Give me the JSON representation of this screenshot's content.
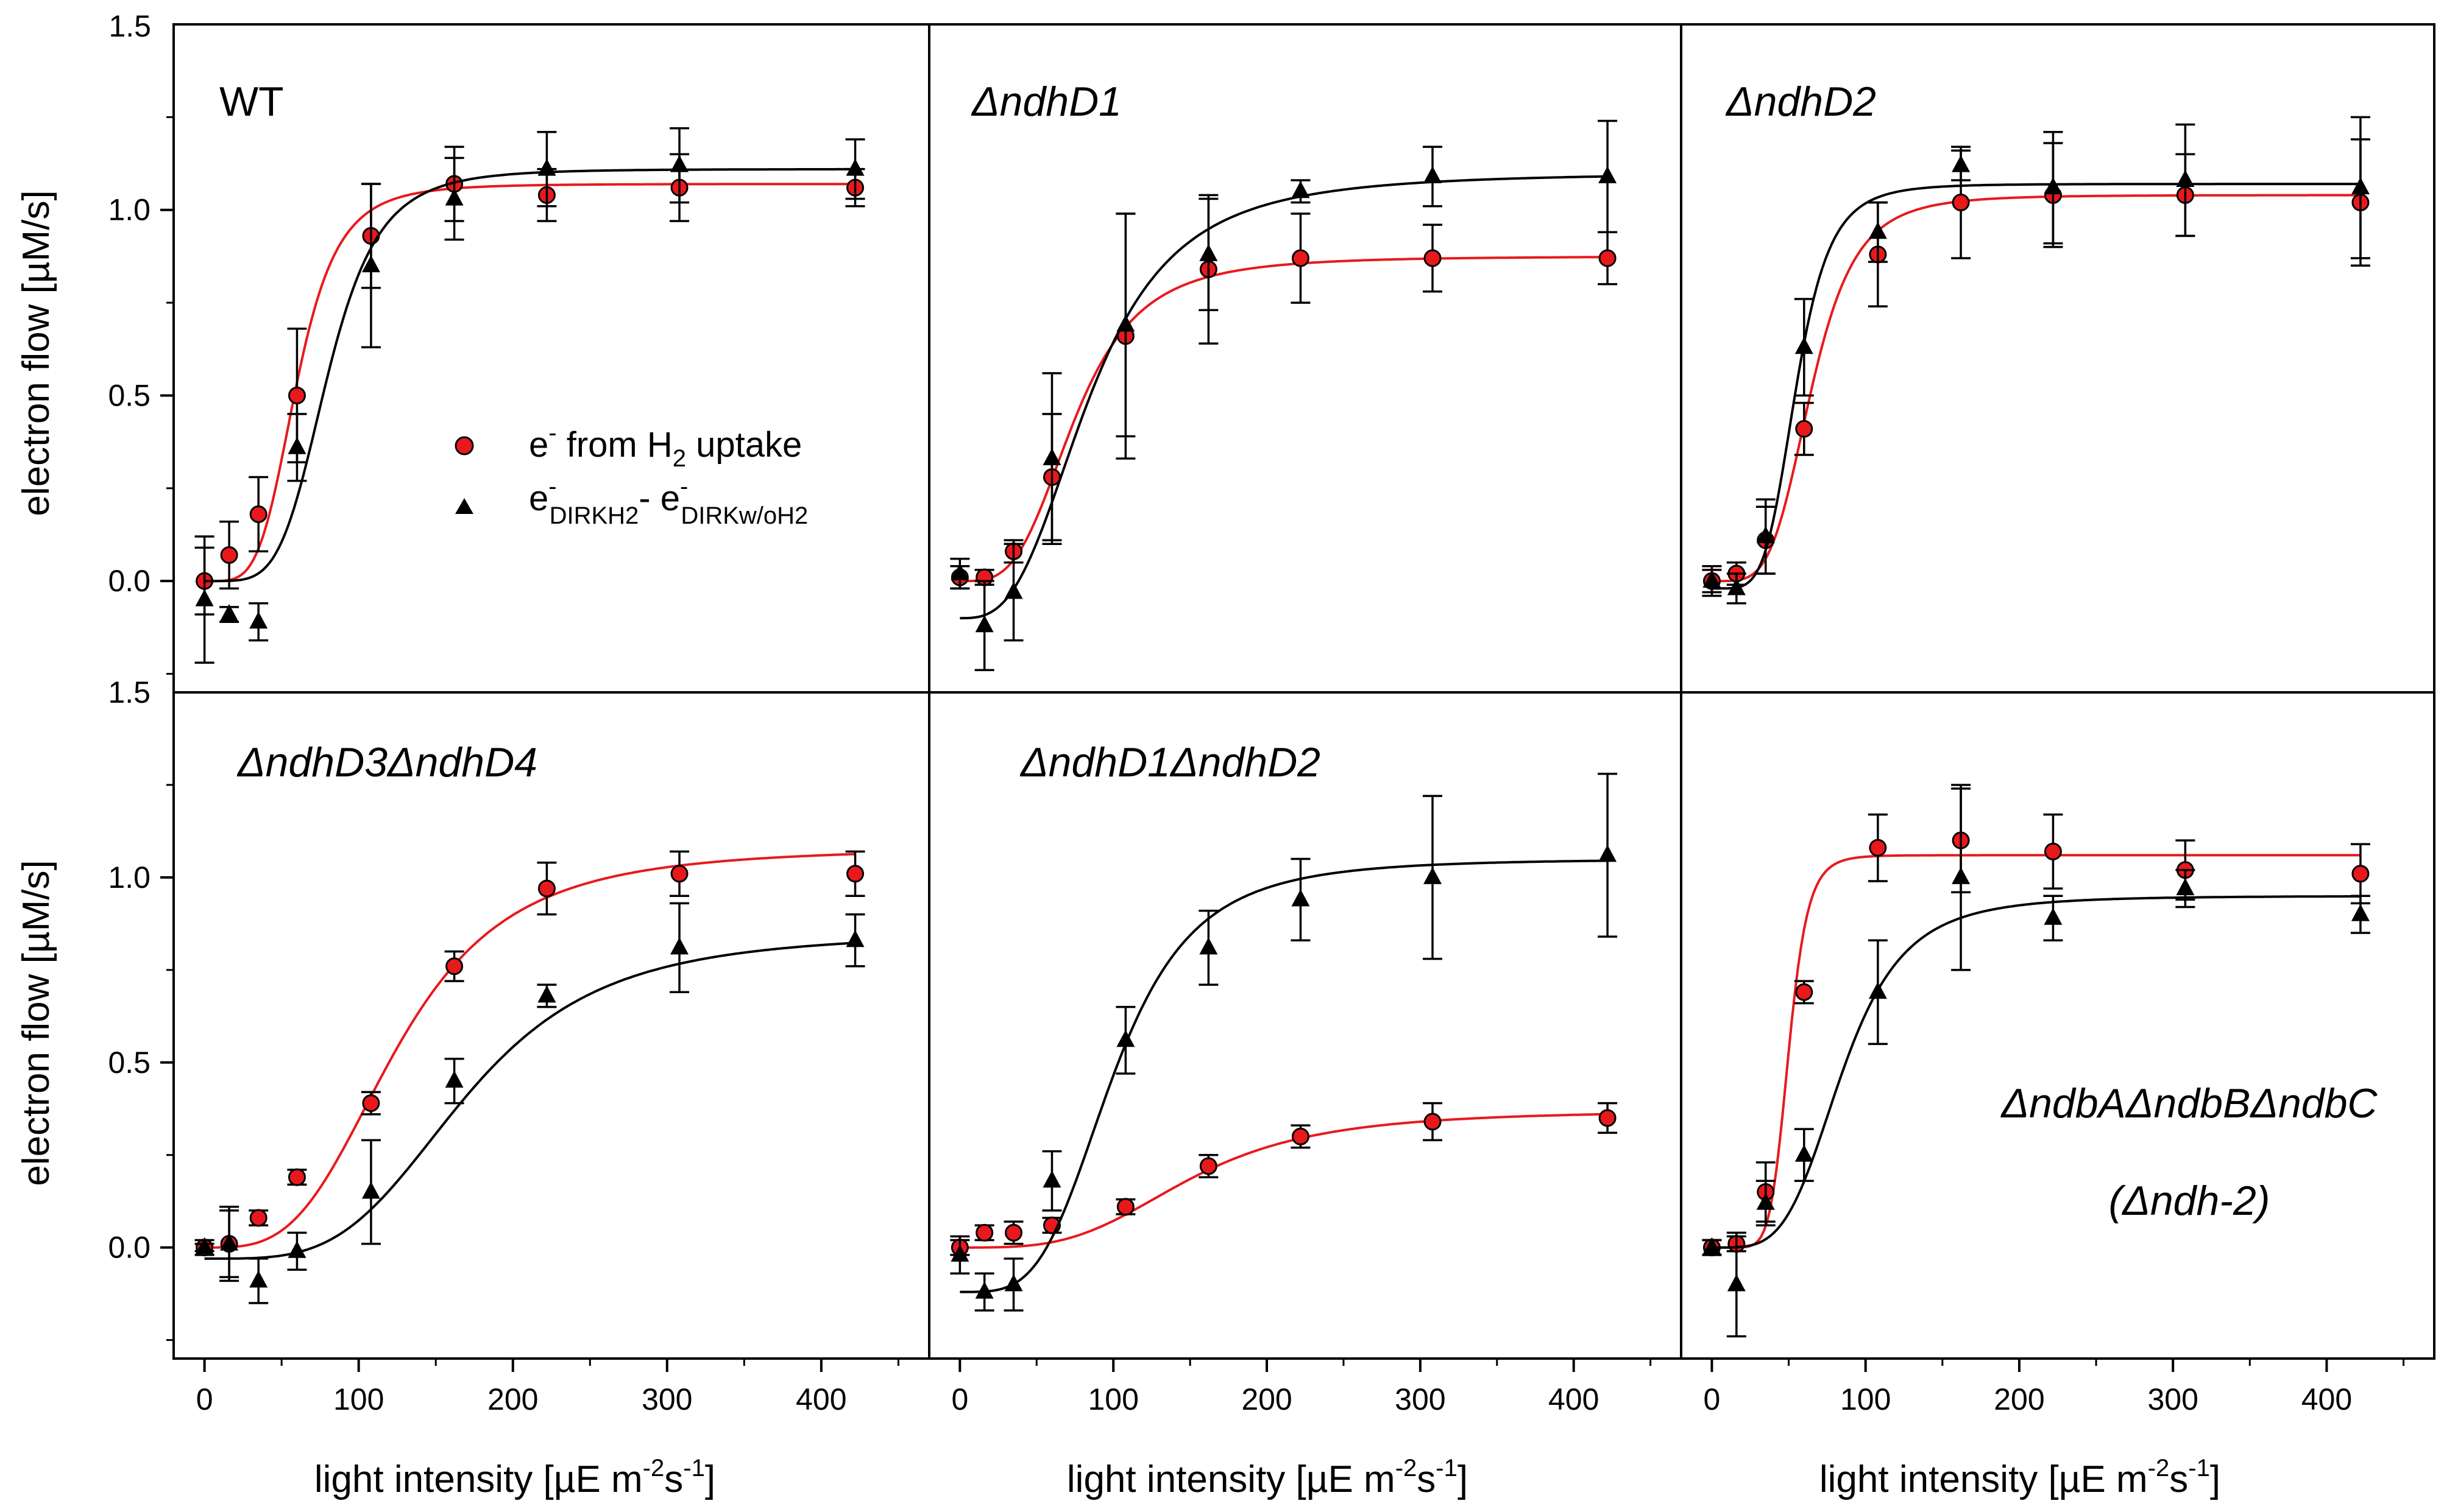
{
  "figure": {
    "y_axis_title": "electron flow [µM/s]",
    "x_axis_title": {
      "main": "light intensity [µE m",
      "sup1": "-2",
      "mid": "s",
      "sup2": "-1",
      "end": "]"
    },
    "x_ticks": [
      "0",
      "100",
      "200",
      "300",
      "400"
    ],
    "y_ticks": [
      "0.0",
      "0.5",
      "1.0"
    ],
    "top_tick": "1.5",
    "colors": {
      "h2_series": "#e8191c",
      "dirk_series": "#000000",
      "axis": "#000000"
    }
  },
  "legend": {
    "item1": {
      "pre": "e",
      "sup": "-",
      "post": " from H",
      "sub": "2",
      "end": " uptake"
    },
    "item2": {
      "e1": "e",
      "sup1": "-",
      "sub1": "DIRKH2",
      "dash": "- e",
      "sup2": "-",
      "sub2": "DIRKw/oH2"
    }
  },
  "chart_data": [
    {
      "type": "scatter",
      "title": "WT",
      "xlabel": "light intensity [µE m-2s-1]",
      "ylabel": "electron flow [µM/s]",
      "xlim": [
        -20,
        470
      ],
      "ylim": [
        -0.3,
        1.5
      ],
      "x": [
        0,
        16,
        35,
        60,
        108,
        162,
        222,
        308,
        422
      ],
      "series": [
        {
          "name": "e- from H2 uptake",
          "marker": "circle",
          "color": "#e8191c",
          "values": [
            0.0,
            0.07,
            0.18,
            0.5,
            0.93,
            1.07,
            1.04,
            1.06,
            1.06
          ],
          "errors": [
            0.09,
            0.09,
            0.1,
            0.18,
            0.14,
            0.1,
            0.07,
            0.09,
            0.05
          ],
          "fit": {
            "ymin": 0.0,
            "ymax": 1.07,
            "x0": 60,
            "n": 4.5
          }
        },
        {
          "name": "e-DIRKH2 - e-DIRKw/oH2",
          "marker": "triangle",
          "color": "#000000",
          "values": [
            -0.05,
            -0.09,
            -0.11,
            0.36,
            0.85,
            1.03,
            1.11,
            1.12,
            1.11
          ],
          "errors": [
            0.17,
            0.02,
            0.05,
            0.09,
            0.22,
            0.11,
            0.1,
            0.1,
            0.08
          ],
          "fit": {
            "ymin": 0.0,
            "ymax": 1.11,
            "x0": 80,
            "n": 4.8
          }
        }
      ]
    },
    {
      "type": "scatter",
      "title": "ΔndhD1",
      "xlabel": "light intensity [µE m-2s-1]",
      "ylabel": "electron flow [µM/s]",
      "xlim": [
        -20,
        470
      ],
      "ylim": [
        -0.3,
        1.5
      ],
      "x": [
        0,
        16,
        35,
        60,
        108,
        162,
        222,
        308,
        422
      ],
      "series": [
        {
          "name": "e- from H2 uptake",
          "marker": "circle",
          "color": "#e8191c",
          "values": [
            0.01,
            0.01,
            0.08,
            0.28,
            0.66,
            0.84,
            0.87,
            0.87,
            0.87
          ],
          "errors": [
            0.03,
            0.02,
            0.03,
            0.17,
            0.33,
            0.2,
            0.12,
            0.09,
            0.07
          ],
          "fit": {
            "ymin": 0.0,
            "ymax": 0.875,
            "x0": 75,
            "n": 3.5
          }
        },
        {
          "name": "e-DIRKH2 - e-DIRKw/oH2",
          "marker": "triangle",
          "color": "#000000",
          "values": [
            0.02,
            -0.12,
            -0.03,
            0.33,
            0.69,
            0.88,
            1.05,
            1.09,
            1.09
          ],
          "errors": [
            0.04,
            0.12,
            0.13,
            0.23,
            0.3,
            0.15,
            0.03,
            0.08,
            0.15
          ],
          "fit": {
            "ymin": -0.1,
            "ymax": 1.1,
            "x0": 85,
            "n": 3.0
          }
        }
      ]
    },
    {
      "type": "scatter",
      "title": "ΔndhD2",
      "xlabel": "light intensity [µE m-2s-1]",
      "ylabel": "electron flow [µM/s]",
      "xlim": [
        -20,
        470
      ],
      "ylim": [
        -0.3,
        1.5
      ],
      "x": [
        0,
        16,
        35,
        60,
        108,
        162,
        222,
        308,
        422
      ],
      "series": [
        {
          "name": "e- from H2 uptake",
          "marker": "circle",
          "color": "#e8191c",
          "values": [
            0.0,
            0.02,
            0.11,
            0.41,
            0.88,
            1.02,
            1.04,
            1.04,
            1.02
          ],
          "errors": [
            0.04,
            0.03,
            0.09,
            0.07,
            0.14,
            0.15,
            0.14,
            0.11,
            0.17
          ],
          "fit": {
            "ymin": 0.0,
            "ymax": 1.04,
            "x0": 65,
            "n": 4.5
          }
        },
        {
          "name": "e-DIRKH2 - e-DIRKw/oH2",
          "marker": "triangle",
          "color": "#000000",
          "values": [
            0.0,
            -0.02,
            0.12,
            0.63,
            0.94,
            1.12,
            1.06,
            1.08,
            1.06
          ],
          "errors": [
            0.03,
            0.04,
            0.1,
            0.13,
            0.08,
            0.04,
            0.15,
            0.15,
            0.19
          ],
          "fit": {
            "ymin": -0.02,
            "ymax": 1.07,
            "x0": 55,
            "n": 5.0
          }
        }
      ]
    },
    {
      "type": "scatter",
      "title": "ΔndhD3ΔndhD4",
      "xlabel": "light intensity [µE m-2s-1]",
      "ylabel": "electron flow [µM/s]",
      "xlim": [
        -20,
        470
      ],
      "ylim": [
        -0.3,
        1.5
      ],
      "x": [
        0,
        16,
        35,
        60,
        108,
        162,
        222,
        308,
        422
      ],
      "series": [
        {
          "name": "e- from H2 uptake",
          "marker": "circle",
          "color": "#e8191c",
          "values": [
            0.0,
            0.01,
            0.08,
            0.19,
            0.39,
            0.76,
            0.97,
            1.01,
            1.01
          ],
          "errors": [
            0.02,
            0.1,
            0.02,
            0.02,
            0.03,
            0.04,
            0.07,
            0.06,
            0.06
          ],
          "fit": {
            "ymin": 0.0,
            "ymax": 1.08,
            "x0": 125,
            "n": 3.4
          }
        },
        {
          "name": "e-DIRKH2 - e-DIRKw/oH2",
          "marker": "triangle",
          "color": "#000000",
          "values": [
            0.0,
            0.01,
            -0.09,
            -0.01,
            0.15,
            0.45,
            0.68,
            0.81,
            0.83
          ],
          "errors": [
            0.01,
            0.09,
            0.06,
            0.05,
            0.14,
            0.06,
            0.03,
            0.12,
            0.07
          ],
          "fit": {
            "ymin": -0.03,
            "ymax": 0.85,
            "x0": 170,
            "n": 3.8
          }
        }
      ]
    },
    {
      "type": "scatter",
      "title": "ΔndhD1ΔndhD2",
      "xlabel": "light intensity [µE m-2s-1]",
      "ylabel": "electron flow [µM/s]",
      "xlim": [
        -20,
        470
      ],
      "ylim": [
        -0.3,
        1.5
      ],
      "x": [
        0,
        16,
        35,
        60,
        108,
        162,
        222,
        308,
        422
      ],
      "series": [
        {
          "name": "e- from H2 uptake",
          "marker": "circle",
          "color": "#e8191c",
          "values": [
            0.0,
            0.04,
            0.04,
            0.06,
            0.11,
            0.22,
            0.3,
            0.34,
            0.35
          ],
          "errors": [
            0.02,
            0.02,
            0.03,
            0.02,
            0.02,
            0.03,
            0.03,
            0.05,
            0.04
          ],
          "fit": {
            "ymin": 0.0,
            "ymax": 0.37,
            "x0": 150,
            "n": 3.5
          }
        },
        {
          "name": "e-DIRKH2 - e-DIRKw/oH2",
          "marker": "triangle",
          "color": "#000000",
          "values": [
            -0.02,
            -0.12,
            -0.1,
            0.18,
            0.56,
            0.81,
            0.94,
            1.0,
            1.06
          ],
          "errors": [
            0.05,
            0.05,
            0.07,
            0.08,
            0.09,
            0.1,
            0.11,
            0.22,
            0.22
          ],
          "fit": {
            "ymin": -0.12,
            "ymax": 1.05,
            "x0": 100,
            "n": 3.8
          }
        }
      ]
    },
    {
      "type": "scatter",
      "title": "ΔndbAΔndbBΔndbC",
      "subtitle": "(Δndh-2)",
      "xlabel": "light intensity [µE m-2s-1]",
      "ylabel": "electron flow [µM/s]",
      "xlim": [
        -20,
        470
      ],
      "ylim": [
        -0.3,
        1.5
      ],
      "x": [
        0,
        16,
        35,
        60,
        108,
        162,
        222,
        308,
        422
      ],
      "series": [
        {
          "name": "e- from H2 uptake",
          "marker": "circle",
          "color": "#e8191c",
          "values": [
            0.0,
            0.01,
            0.15,
            0.69,
            1.08,
            1.1,
            1.07,
            1.02,
            1.01
          ],
          "errors": [
            0.02,
            0.02,
            0.08,
            0.03,
            0.09,
            0.14,
            0.1,
            0.08,
            0.08
          ],
          "fit": {
            "ymin": 0.0,
            "ymax": 1.06,
            "x0": 50,
            "n": 8.0
          }
        },
        {
          "name": "e-DIRKH2 - e-DIRKw/oH2",
          "marker": "triangle",
          "color": "#000000",
          "values": [
            0.0,
            -0.1,
            0.12,
            0.25,
            0.69,
            1.0,
            0.89,
            0.97,
            0.9
          ],
          "errors": [
            0.02,
            0.14,
            0.06,
            0.07,
            0.14,
            0.25,
            0.06,
            0.05,
            0.05
          ],
          "fit": {
            "ymin": 0.0,
            "ymax": 0.95,
            "x0": 85,
            "n": 4.2
          }
        }
      ]
    }
  ]
}
